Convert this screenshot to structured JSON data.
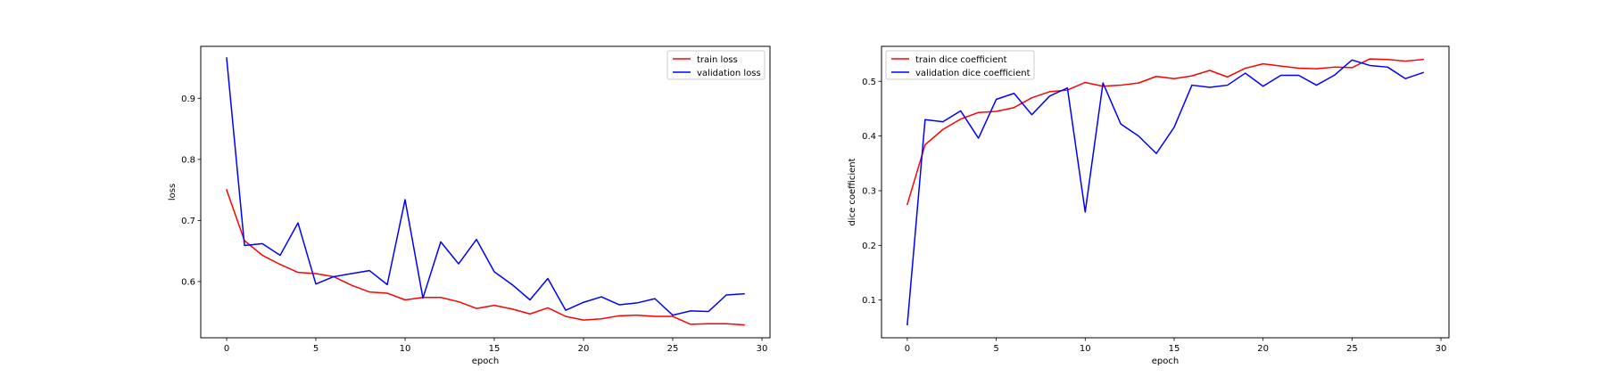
{
  "chart_data": [
    {
      "type": "line",
      "title": "",
      "xlabel": "epoch",
      "ylabel": "loss",
      "xlim": [
        -1.45,
        30.45
      ],
      "ylim": [
        0.508,
        0.985
      ],
      "xticks": [
        0,
        5,
        10,
        15,
        20,
        25,
        30
      ],
      "yticks": [
        0.6,
        0.7,
        0.8,
        0.9
      ],
      "ytick_decimals": 1,
      "grid": false,
      "legend_position": "upper right",
      "x": [
        0,
        1,
        2,
        3,
        4,
        5,
        6,
        7,
        8,
        9,
        10,
        11,
        12,
        13,
        14,
        15,
        16,
        17,
        18,
        19,
        20,
        21,
        22,
        23,
        24,
        25,
        26,
        27,
        28,
        29
      ],
      "series": [
        {
          "name": "train loss",
          "color": "#ff0000",
          "values": [
            0.75,
            0.667,
            0.643,
            0.628,
            0.615,
            0.613,
            0.608,
            0.594,
            0.583,
            0.581,
            0.57,
            0.574,
            0.574,
            0.567,
            0.556,
            0.561,
            0.555,
            0.547,
            0.557,
            0.543,
            0.537,
            0.539,
            0.544,
            0.545,
            0.543,
            0.543,
            0.53,
            0.531,
            0.531,
            0.529
          ]
        },
        {
          "name": "validation loss",
          "color": "#0000ff",
          "values": [
            0.966,
            0.659,
            0.662,
            0.643,
            0.696,
            0.596,
            0.608,
            0.613,
            0.618,
            0.595,
            0.734,
            0.573,
            0.665,
            0.629,
            0.669,
            0.616,
            0.595,
            0.57,
            0.605,
            0.553,
            0.566,
            0.575,
            0.562,
            0.565,
            0.572,
            0.545,
            0.552,
            0.551,
            0.578,
            0.58
          ]
        }
      ]
    },
    {
      "type": "line",
      "title": "",
      "xlabel": "epoch",
      "ylabel": "dice coefficient",
      "xlim": [
        -1.45,
        30.45
      ],
      "ylim": [
        0.031,
        0.564
      ],
      "xticks": [
        0,
        5,
        10,
        15,
        20,
        25,
        30
      ],
      "yticks": [
        0.1,
        0.2,
        0.3,
        0.4,
        0.5
      ],
      "ytick_decimals": 1,
      "grid": false,
      "legend_position": "upper left",
      "x": [
        0,
        1,
        2,
        3,
        4,
        5,
        6,
        7,
        8,
        9,
        10,
        11,
        12,
        13,
        14,
        15,
        16,
        17,
        18,
        19,
        20,
        21,
        22,
        23,
        24,
        25,
        26,
        27,
        28,
        29
      ],
      "series": [
        {
          "name": "train dice coefficient",
          "color": "#ff0000",
          "values": [
            0.275,
            0.384,
            0.412,
            0.431,
            0.443,
            0.445,
            0.452,
            0.47,
            0.481,
            0.484,
            0.498,
            0.491,
            0.493,
            0.497,
            0.509,
            0.505,
            0.51,
            0.52,
            0.508,
            0.524,
            0.532,
            0.528,
            0.524,
            0.523,
            0.526,
            0.525,
            0.541,
            0.54,
            0.537,
            0.54
          ]
        },
        {
          "name": "validation dice coefficient",
          "color": "#0000ff",
          "values": [
            0.055,
            0.43,
            0.426,
            0.446,
            0.396,
            0.467,
            0.478,
            0.439,
            0.473,
            0.488,
            0.261,
            0.497,
            0.422,
            0.4,
            0.368,
            0.416,
            0.493,
            0.489,
            0.493,
            0.515,
            0.491,
            0.511,
            0.511,
            0.493,
            0.511,
            0.539,
            0.529,
            0.526,
            0.505,
            0.516
          ]
        }
      ]
    }
  ]
}
